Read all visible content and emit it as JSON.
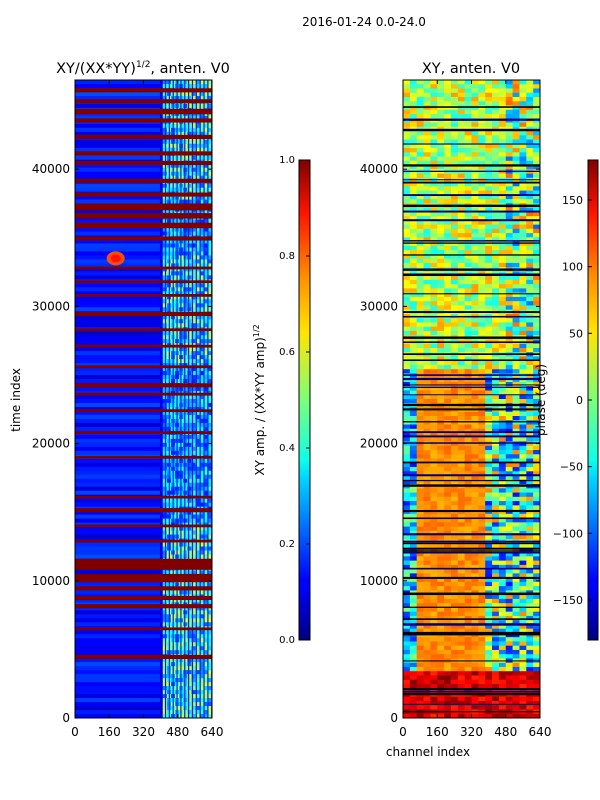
{
  "suptitle": "2016-01-24 0.0-24.0",
  "panels": {
    "left": {
      "title": "XY/(XX*YY)1/2, anten. V0",
      "title_main": "XY/(XX*YY)",
      "title_sup": "1/2",
      "title_tail": ", anten. V0",
      "ylabel": "time index",
      "cbar_label_main": "XY amp. / (XX*YY amp)",
      "cbar_label_sup": "1/2"
    },
    "right": {
      "title": "XY, anten. V0",
      "xlabel": "channel index",
      "cbar_label": "phase (deg)"
    }
  },
  "chart_data": [
    {
      "type": "heatmap",
      "title": "XY/(XX*YY)^1/2, anten. V0",
      "xlabel": "",
      "ylabel": "time index",
      "x_ticks": [
        "0",
        "160",
        "320",
        "480",
        "640"
      ],
      "y_ticks": [
        "0",
        "10000",
        "20000",
        "30000",
        "40000"
      ],
      "xlim": [
        0,
        640
      ],
      "ylim": [
        0,
        46500
      ],
      "colormap": "jet",
      "colorbar": {
        "label": "XY amp. / (XX*YY amp)^1/2",
        "range": [
          0.0,
          1.0
        ],
        "ticks": [
          "0.0",
          "0.2",
          "0.4",
          "0.6",
          "0.8",
          "1.0"
        ]
      },
      "background_value": 0.1,
      "bright_channel_range": [
        410,
        640
      ],
      "saturated_time_bands": [
        [
          4300,
          4600
        ],
        [
          6400,
          6600
        ],
        [
          8000,
          8300
        ],
        [
          8600,
          8900
        ],
        [
          9300,
          9600
        ],
        [
          9900,
          10500
        ],
        [
          10800,
          11600
        ],
        [
          12800,
          13000
        ],
        [
          13900,
          14100
        ],
        [
          15000,
          15300
        ],
        [
          16000,
          16200
        ],
        [
          18900,
          19100
        ],
        [
          20700,
          20900
        ],
        [
          22300,
          22500
        ],
        [
          23500,
          23700
        ],
        [
          24100,
          24400
        ],
        [
          25500,
          25700
        ],
        [
          27000,
          27200
        ],
        [
          28200,
          28400
        ],
        [
          29300,
          29600
        ],
        [
          30700,
          30900
        ],
        [
          31700,
          31900
        ],
        [
          32700,
          32900
        ],
        [
          34800,
          35100
        ],
        [
          35700,
          36100
        ],
        [
          36400,
          36800
        ],
        [
          37000,
          37500
        ],
        [
          38000,
          38300
        ],
        [
          39000,
          39300
        ],
        [
          40300,
          40600
        ],
        [
          41000,
          41300
        ],
        [
          42200,
          42500
        ],
        [
          43400,
          43700
        ],
        [
          44000,
          44400
        ],
        [
          44800,
          45100
        ],
        [
          45600,
          45900
        ]
      ],
      "hotspot": {
        "channel": 190,
        "time": 33500,
        "value": 1.0
      }
    },
    {
      "type": "heatmap",
      "title": "XY, anten. V0",
      "xlabel": "channel index",
      "ylabel": "",
      "x_ticks": [
        "0",
        "160",
        "320",
        "480",
        "640"
      ],
      "y_ticks": [
        "0",
        "10000",
        "20000",
        "30000",
        "40000"
      ],
      "xlim": [
        0,
        640
      ],
      "ylim": [
        0,
        46500
      ],
      "colormap": "jet",
      "colorbar": {
        "label": "phase (deg)",
        "range": [
          -180,
          180
        ],
        "ticks": [
          "-150",
          "-100",
          "-50",
          "0",
          "50",
          "100",
          "150"
        ]
      },
      "regions": [
        {
          "time_range": [
            0,
            3500
          ],
          "channel_range": [
            0,
            640
          ],
          "value_deg": 150
        },
        {
          "time_range": [
            3500,
            12000
          ],
          "channel_range": [
            0,
            420
          ],
          "value_deg": 90
        },
        {
          "time_range": [
            12000,
            25500
          ],
          "channel_range": [
            60,
            400
          ],
          "value_deg": 80
        },
        {
          "time_range": [
            25500,
            46500
          ],
          "channel_range": [
            0,
            640
          ],
          "value_deg": 20
        }
      ]
    }
  ]
}
